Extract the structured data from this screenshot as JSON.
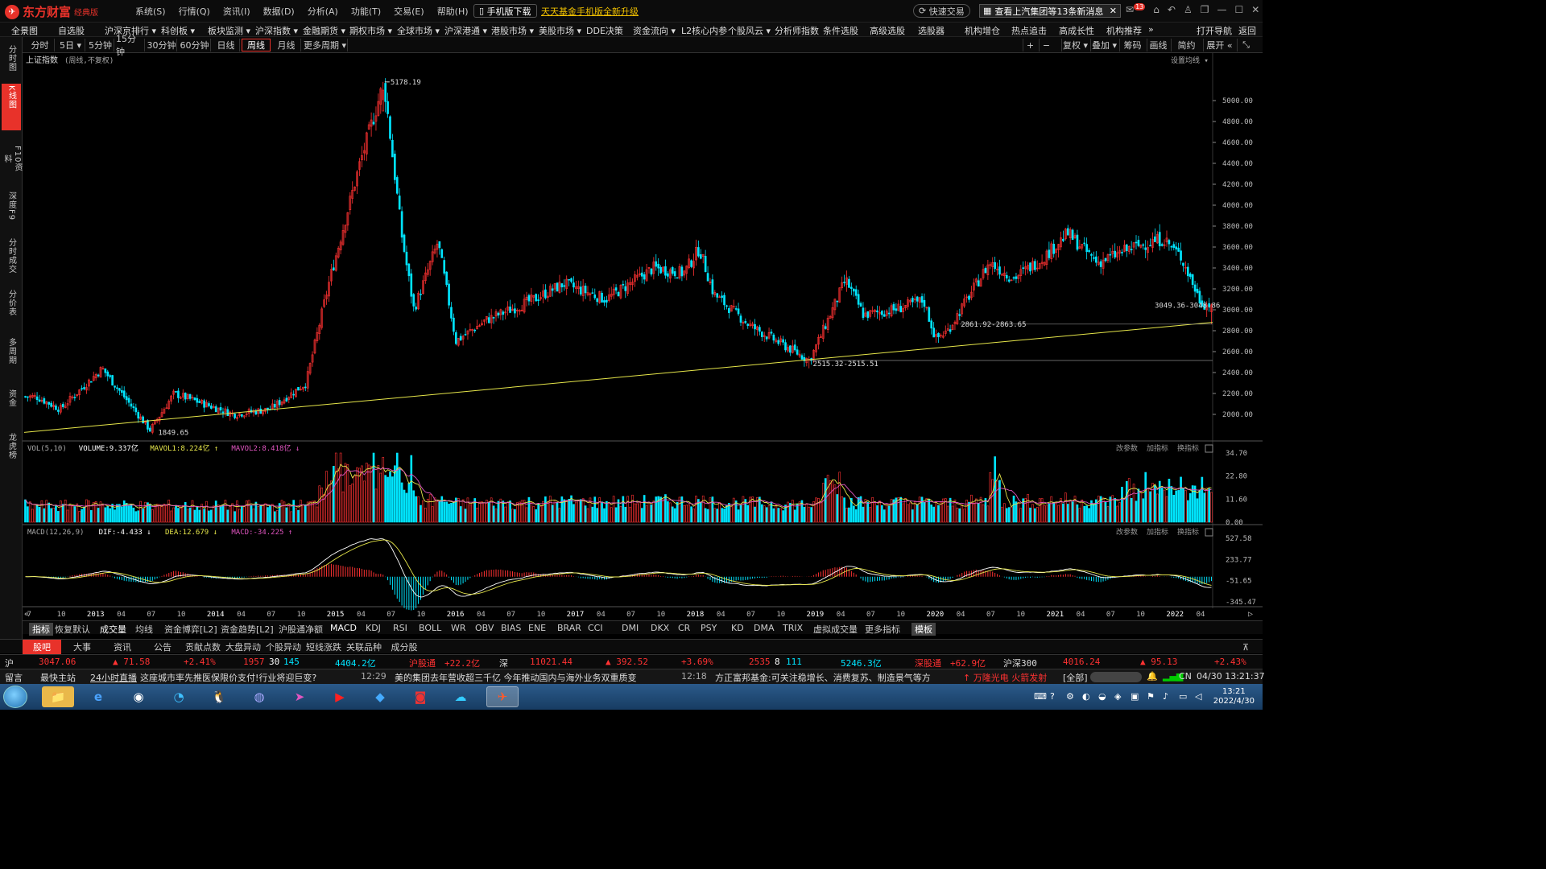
{
  "app": {
    "brand": "东方财富",
    "edition": "经典版",
    "menu": [
      "系统(S)",
      "行情(Q)",
      "资讯(I)",
      "数据(D)",
      "分析(A)",
      "功能(T)",
      "交易(E)",
      "帮助(H)"
    ],
    "mobile_download": "手机版下载",
    "promo": "天天基金手机版全新升级",
    "quick_trade": "快速交易",
    "news_alert": "查看上汽集团等13条新消息",
    "badge_count": "13"
  },
  "nav": {
    "items": [
      "全景图",
      "自选股",
      "沪深京排行 ▾",
      "科创板 ▾",
      "板块监测 ▾",
      "沪深指数 ▾",
      "金融期货 ▾",
      "期权市场 ▾",
      "全球市场 ▾",
      "沪深港通 ▾",
      "港股市场 ▾",
      "美股市场 ▾",
      "DDE决策",
      "资金流向 ▾",
      "L2核心内参",
      "个股风云 ▾",
      "分析师指数",
      "条件选股",
      "高级选股",
      "选股器",
      "机构增仓",
      "热点追击",
      "高成长性",
      "机构推荐",
      "»"
    ],
    "right": [
      "打开导航",
      "返回"
    ]
  },
  "sidebar": {
    "items": [
      "分时图",
      "K线图",
      "F10资料",
      "深度F9",
      "分时成交",
      "分价表",
      "多周期",
      "资金",
      "龙虎榜"
    ],
    "active": 1
  },
  "periods": {
    "items": [
      "分时",
      "5日 ▾",
      "5分钟",
      "15分钟",
      "30分钟",
      "60分钟",
      "日线",
      "周线",
      "月线",
      "更多周期 ▾"
    ],
    "active": 7
  },
  "toolbar_right": [
    "+",
    "−",
    "复权 ▾",
    "叠加 ▾",
    "筹码",
    "画线",
    "简约",
    "展开 «",
    "⤡"
  ],
  "chart": {
    "title": "上证指数",
    "subtitle": "(周线,不复权)",
    "ma_setting": "设置均线 ▾",
    "y_ticks": [
      "5000.00",
      "4800.00",
      "4600.00",
      "4400.00",
      "4200.00",
      "4000.00",
      "3800.00",
      "3600.00",
      "3400.00",
      "3200.00",
      "3000.00",
      "2800.00",
      "2600.00",
      "2400.00",
      "2200.00",
      "2000.00"
    ],
    "annotations": {
      "high": "5178.19",
      "low_2014": "1849.65",
      "low_2019": "2515.32-2515.51",
      "range_2020": "2861.92-2863.65",
      "current_range": "3049.36-3048.86"
    },
    "vol_legend": {
      "name": "VOL(5,10)",
      "volume": "VOLUME:9.337亿",
      "mavol1": "MAVOL1:8.224亿",
      "mavol2": "MAVOL2:8.418亿"
    },
    "vol_ticks": [
      "34.70",
      "22.80",
      "11.60",
      "0.00"
    ],
    "macd_legend": {
      "name": "MACD(12,26,9)",
      "dif": "DIF:-4.433",
      "dea": "DEA:12.679",
      "macd": "MACD:-34.225"
    },
    "macd_ticks": [
      "527.58",
      "233.77",
      "-51.65",
      "-345.47"
    ],
    "panel_links": [
      "改参数",
      "加指标",
      "换指标"
    ],
    "x_labels": [
      "7",
      "10",
      "2013",
      "04",
      "07",
      "10",
      "2014",
      "04",
      "07",
      "10",
      "2015",
      "04",
      "07",
      "10",
      "2016",
      "04",
      "07",
      "10",
      "2017",
      "04",
      "07",
      "10",
      "2018",
      "04",
      "07",
      "10",
      "2019",
      "04",
      "07",
      "10",
      "2020",
      "04",
      "07",
      "10",
      "2021",
      "04",
      "07",
      "10",
      "2022",
      "04"
    ]
  },
  "chart_data": {
    "type": "candlestick",
    "title": "上证指数",
    "period": "weekly",
    "ylim": [
      1850,
      5200
    ],
    "path_points": [
      [
        2012.55,
        2170
      ],
      [
        2012.75,
        2050
      ],
      [
        2013.1,
        2440
      ],
      [
        2013.5,
        1849.65
      ],
      [
        2013.7,
        2200
      ],
      [
        2014.2,
        2000
      ],
      [
        2014.5,
        2050
      ],
      [
        2014.8,
        2300
      ],
      [
        2015.0,
        3300
      ],
      [
        2015.25,
        4400
      ],
      [
        2015.45,
        5178.19
      ],
      [
        2015.6,
        3700
      ],
      [
        2015.7,
        3000
      ],
      [
        2015.9,
        3650
      ],
      [
        2016.05,
        2700
      ],
      [
        2016.3,
        2900
      ],
      [
        2016.7,
        3100
      ],
      [
        2016.95,
        3250
      ],
      [
        2017.3,
        3100
      ],
      [
        2017.7,
        3400
      ],
      [
        2017.95,
        3350
      ],
      [
        2018.08,
        3587
      ],
      [
        2018.2,
        3150
      ],
      [
        2018.5,
        2850
      ],
      [
        2018.8,
        2650
      ],
      [
        2019.0,
        2515.32
      ],
      [
        2019.3,
        3288
      ],
      [
        2019.45,
        2950
      ],
      [
        2019.7,
        3000
      ],
      [
        2019.95,
        3090
      ],
      [
        2020.05,
        2720
      ],
      [
        2020.15,
        2800
      ],
      [
        2020.5,
        3450
      ],
      [
        2020.7,
        3300
      ],
      [
        2020.95,
        3500
      ],
      [
        2021.15,
        3731
      ],
      [
        2021.4,
        3450
      ],
      [
        2021.7,
        3600
      ],
      [
        2021.95,
        3680
      ],
      [
        2022.1,
        3500
      ],
      [
        2022.25,
        3100
      ],
      [
        2022.3,
        3047.06
      ]
    ]
  },
  "indicator_tabs": [
    "指标",
    "恢复默认",
    "成交量",
    "均线",
    "资金博弈[L2]",
    "资金趋势[L2]",
    "沪股通净额",
    "MACD",
    "KDJ",
    "RSI",
    "BOLL",
    "WR",
    "OBV",
    "BIAS",
    "ENE",
    "BRAR",
    "CCI",
    "DMI",
    "DKX",
    "CR",
    "PSY",
    "KD",
    "DMA",
    "TRIX",
    "虚拟成交量",
    "更多指标",
    "模板"
  ],
  "bottom_tabs": [
    "股吧",
    "大事",
    "资讯",
    "公告",
    "贡献点数",
    "大盘异动",
    "个股异动",
    "短线涨跌",
    "关联品种",
    "成分股"
  ],
  "quotes": {
    "sh_label": "沪",
    "sh_price": "3047.06",
    "sh_change": "▲ 71.58",
    "sh_pct": "+2.41%",
    "sh_up": "1957",
    "sh_flat": "30",
    "sh_down": "145",
    "sh_amount": "4404.2亿",
    "hgt_label": "沪股通",
    "hgt_value": "+22.2亿",
    "sz_label": "深",
    "sz_price": "11021.44",
    "sz_change": "▲ 392.52",
    "sz_pct": "+3.69%",
    "sz_up": "2535",
    "sz_flat": "8",
    "sz_down": "111",
    "sz_amount": "5246.3亿",
    "sgt_label": "深股通",
    "sgt_value": "+62.9亿",
    "hs300_label": "沪深300",
    "hs300_price": "4016.24",
    "hs300_change": "▲ 95.13",
    "hs300_pct": "+2.43%"
  },
  "ticker": {
    "items": [
      "留言",
      "最快主站",
      "24小时直播"
    ],
    "news1": "这座城市率先推医保限价支付!行业将迎巨变?",
    "time1": "12:29",
    "news2": "美的集团去年营收超三千亿  今年推动国内与海外业务双重质变",
    "time2": "12:18",
    "news3": "方正富邦基金:可关注稳增长、消费复苏、制造景气等方",
    "hot": "↑ 万隆光电  火箭发射",
    "scope": "[全部]",
    "lang": "CN",
    "datetime": "04/30 13:21:37"
  },
  "taskbar": {
    "time": "13:21",
    "date": "2022/4/30"
  },
  "colors": {
    "up": "#ff3232",
    "down": "#00e5ff",
    "trend": "#e6e64a",
    "accent": "#e8322a"
  }
}
